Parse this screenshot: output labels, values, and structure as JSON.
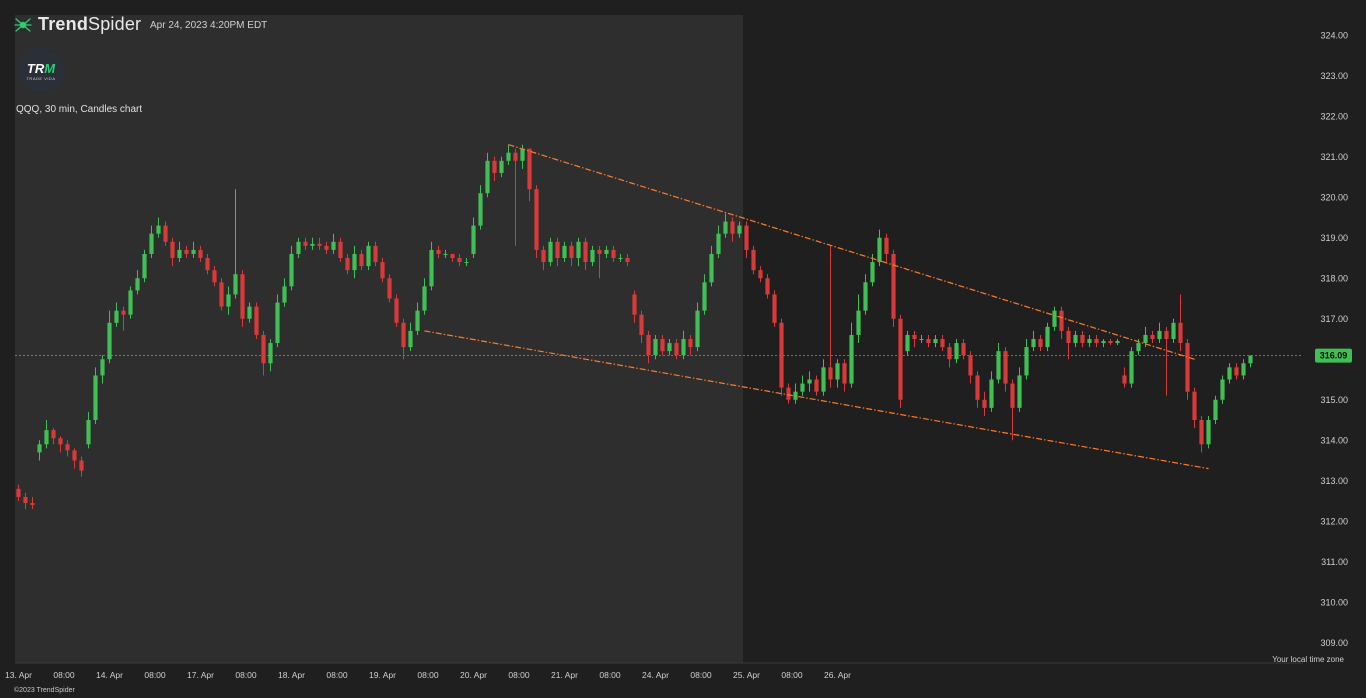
{
  "header": {
    "brand_name_bold": "Trend",
    "brand_name_rest": "Spider",
    "timestamp": "Apr 24, 2023 4:20PM EDT",
    "chart_label": "QQQ, 30 min, Candles chart",
    "logo_text": "TR",
    "logo_accent": "M",
    "logo_subtext": "TRADE VIDA"
  },
  "footer": {
    "timezone_label": "Your local time zone",
    "copyright": "©2023 TrendSpider"
  },
  "colors": {
    "background": "#1f1f1f",
    "session_band": "#2e2e2e",
    "up_candle": "#3fbf54",
    "down_candle": "#d83a3a",
    "trendline": "#ff7a2a",
    "price_badge": "#3fbf54"
  },
  "chart_data": {
    "type": "candlestick",
    "symbol": "QQQ",
    "interval": "30 min",
    "ylim": [
      308.5,
      324.5
    ],
    "y_ticks": [
      309.0,
      310.0,
      311.0,
      312.0,
      313.0,
      314.0,
      315.0,
      316.0,
      317.0,
      318.0,
      319.0,
      320.0,
      321.0,
      322.0,
      323.0,
      324.0
    ],
    "x_ticks": [
      "13. Apr",
      "08:00",
      "14. Apr",
      "08:00",
      "17. Apr",
      "08:00",
      "18. Apr",
      "08:00",
      "19. Apr",
      "08:00",
      "20. Apr",
      "08:00",
      "21. Apr",
      "08:00",
      "24. Apr",
      "08:00",
      "25. Apr",
      "08:00",
      "26. Apr"
    ],
    "sessions": [
      {
        "start": 0,
        "end": 13
      },
      {
        "start": 13,
        "end": 26
      },
      {
        "start": 26,
        "end": 39
      },
      {
        "start": 39,
        "end": 52
      },
      {
        "start": 52,
        "end": 65
      },
      {
        "start": 65,
        "end": 78
      },
      {
        "start": 78,
        "end": 91
      },
      {
        "start": 91,
        "end": 104
      }
    ],
    "last_price": 316.09,
    "trendlines": [
      {
        "name": "upper",
        "from": [
          70,
          321.3
        ],
        "to": [
          168,
          316.0
        ]
      },
      {
        "name": "lower",
        "from": [
          58,
          316.7
        ],
        "to": [
          170,
          313.3
        ]
      }
    ],
    "candles": [
      [
        312.8,
        312.6,
        312.9,
        312.5
      ],
      [
        312.6,
        312.45,
        312.7,
        312.3
      ],
      [
        312.45,
        312.4,
        312.6,
        312.3
      ],
      [
        313.7,
        313.9,
        314.0,
        313.5
      ],
      [
        313.9,
        314.25,
        314.5,
        313.8
      ],
      [
        314.25,
        314.05,
        314.3,
        313.9
      ],
      [
        314.05,
        313.9,
        314.1,
        313.7
      ],
      [
        313.9,
        313.75,
        314.0,
        313.6
      ],
      [
        313.75,
        313.5,
        313.8,
        313.3
      ],
      [
        313.5,
        313.25,
        313.6,
        313.1
      ],
      [
        313.9,
        314.5,
        314.7,
        313.8
      ],
      [
        314.5,
        315.6,
        315.8,
        314.4
      ],
      [
        315.6,
        316.0,
        316.1,
        315.4
      ],
      [
        316.0,
        316.9,
        317.2,
        315.9
      ],
      [
        316.9,
        317.2,
        317.4,
        316.8
      ],
      [
        317.2,
        317.1,
        317.3,
        316.7
      ],
      [
        317.1,
        317.7,
        317.8,
        317.0
      ],
      [
        317.7,
        318.0,
        318.2,
        317.6
      ],
      [
        318.0,
        318.6,
        318.7,
        317.9
      ],
      [
        318.6,
        319.1,
        319.3,
        318.5
      ],
      [
        319.1,
        319.3,
        319.5,
        319.0
      ],
      [
        319.3,
        318.9,
        319.4,
        318.8
      ],
      [
        318.9,
        318.5,
        319.0,
        318.3
      ],
      [
        318.5,
        318.7,
        318.9,
        318.4
      ],
      [
        318.7,
        318.6,
        318.8,
        318.5
      ],
      [
        318.6,
        318.7,
        318.9,
        318.5
      ],
      [
        318.7,
        318.5,
        318.8,
        318.4
      ],
      [
        318.5,
        318.2,
        318.6,
        318.1
      ],
      [
        318.2,
        317.9,
        318.3,
        317.8
      ],
      [
        317.9,
        317.3,
        318.0,
        317.2
      ],
      [
        317.3,
        317.6,
        317.8,
        317.1
      ],
      [
        317.6,
        318.1,
        320.2,
        317.5
      ],
      [
        318.1,
        317.0,
        318.2,
        316.8
      ],
      [
        317.0,
        317.3,
        317.4,
        316.9
      ],
      [
        317.3,
        316.6,
        317.4,
        316.5
      ],
      [
        316.6,
        315.9,
        316.7,
        315.6
      ],
      [
        315.9,
        316.4,
        316.5,
        315.7
      ],
      [
        316.4,
        317.4,
        317.6,
        316.3
      ],
      [
        317.4,
        317.8,
        318.0,
        317.3
      ],
      [
        317.8,
        318.6,
        318.8,
        317.7
      ],
      [
        318.6,
        318.9,
        319.0,
        318.5
      ],
      [
        318.9,
        318.8,
        319.0,
        318.7
      ],
      [
        318.8,
        318.85,
        319.0,
        318.7
      ],
      [
        318.85,
        318.8,
        319.0,
        318.7
      ],
      [
        318.8,
        318.7,
        318.9,
        318.6
      ],
      [
        318.7,
        318.9,
        319.1,
        318.6
      ],
      [
        318.9,
        318.5,
        319.0,
        318.4
      ],
      [
        318.5,
        318.2,
        318.6,
        318.1
      ],
      [
        318.2,
        318.6,
        318.8,
        318.0
      ],
      [
        318.6,
        318.3,
        318.7,
        318.2
      ],
      [
        318.3,
        318.8,
        318.9,
        318.2
      ],
      [
        318.8,
        318.4,
        318.9,
        318.3
      ],
      [
        318.4,
        318.0,
        318.5,
        317.9
      ],
      [
        318.0,
        317.5,
        318.1,
        317.4
      ],
      [
        317.5,
        316.9,
        317.6,
        316.8
      ],
      [
        316.9,
        316.3,
        317.0,
        316.0
      ],
      [
        316.3,
        316.7,
        316.9,
        316.2
      ],
      [
        316.7,
        317.2,
        317.4,
        316.6
      ],
      [
        317.2,
        317.8,
        318.0,
        317.1
      ],
      [
        317.8,
        318.7,
        318.9,
        317.7
      ],
      [
        318.7,
        318.6,
        318.8,
        318.5
      ],
      [
        318.6,
        318.6,
        318.7,
        318.5
      ],
      [
        318.6,
        318.5,
        318.6,
        318.4
      ],
      [
        318.5,
        318.4,
        318.6,
        318.3
      ],
      [
        318.4,
        318.4,
        318.5,
        318.3
      ],
      [
        318.6,
        319.3,
        319.5,
        318.5
      ],
      [
        319.3,
        320.1,
        320.3,
        319.2
      ],
      [
        320.1,
        320.9,
        321.1,
        320.0
      ],
      [
        320.9,
        320.6,
        321.0,
        320.4
      ],
      [
        320.6,
        320.9,
        321.0,
        320.5
      ],
      [
        320.9,
        321.1,
        321.3,
        320.8
      ],
      [
        321.1,
        320.9,
        321.2,
        318.8
      ],
      [
        320.9,
        321.2,
        321.3,
        320.7
      ],
      [
        321.2,
        320.2,
        321.2,
        319.9
      ],
      [
        320.2,
        318.7,
        320.3,
        318.5
      ],
      [
        318.7,
        318.4,
        318.8,
        318.2
      ],
      [
        318.4,
        318.9,
        319.0,
        318.3
      ],
      [
        318.9,
        318.5,
        319.0,
        318.3
      ],
      [
        318.5,
        318.8,
        318.9,
        318.4
      ],
      [
        318.8,
        318.5,
        318.9,
        318.3
      ],
      [
        318.5,
        318.9,
        319.0,
        318.3
      ],
      [
        318.9,
        318.4,
        319.0,
        318.2
      ],
      [
        318.4,
        318.7,
        318.8,
        318.3
      ],
      [
        318.7,
        318.6,
        318.8,
        318.0
      ],
      [
        318.6,
        318.7,
        318.8,
        318.5
      ],
      [
        318.7,
        318.5,
        318.8,
        318.4
      ],
      [
        318.5,
        318.5,
        318.6,
        318.4
      ],
      [
        318.5,
        318.4,
        318.6,
        318.3
      ],
      [
        317.6,
        317.1,
        317.7,
        316.9
      ],
      [
        317.1,
        316.6,
        317.2,
        316.4
      ],
      [
        316.6,
        316.1,
        316.7,
        315.9
      ],
      [
        316.1,
        316.5,
        316.6,
        316.0
      ],
      [
        316.5,
        316.2,
        316.6,
        316.1
      ],
      [
        316.2,
        316.4,
        316.5,
        316.1
      ],
      [
        316.4,
        316.1,
        316.5,
        316.0
      ],
      [
        316.1,
        316.5,
        316.7,
        316.0
      ],
      [
        316.5,
        316.3,
        316.6,
        316.1
      ],
      [
        316.3,
        317.2,
        317.4,
        316.2
      ],
      [
        317.2,
        317.9,
        318.1,
        317.1
      ],
      [
        317.9,
        318.6,
        318.8,
        317.8
      ],
      [
        318.6,
        319.1,
        319.3,
        318.5
      ],
      [
        319.1,
        319.4,
        319.6,
        319.0
      ],
      [
        319.4,
        319.1,
        319.5,
        318.9
      ],
      [
        319.1,
        319.3,
        319.4,
        319.0
      ],
      [
        319.3,
        318.7,
        319.4,
        318.5
      ],
      [
        318.7,
        318.2,
        318.8,
        318.1
      ],
      [
        318.2,
        318.0,
        318.3,
        317.9
      ],
      [
        318.0,
        317.6,
        318.1,
        317.5
      ],
      [
        317.6,
        316.9,
        317.7,
        316.8
      ],
      [
        316.9,
        315.3,
        317.0,
        315.1
      ],
      [
        315.3,
        315.0,
        315.4,
        314.9
      ],
      [
        315.0,
        315.2,
        315.4,
        314.9
      ],
      [
        315.2,
        315.4,
        315.6,
        315.1
      ],
      [
        315.4,
        315.5,
        315.7,
        315.2
      ],
      [
        315.5,
        315.2,
        315.6,
        315.1
      ],
      [
        315.2,
        315.8,
        316.0,
        315.1
      ],
      [
        315.8,
        315.5,
        318.8,
        315.3
      ],
      [
        315.5,
        315.9,
        316.0,
        315.3
      ],
      [
        315.9,
        315.4,
        316.0,
        315.2
      ],
      [
        315.4,
        316.6,
        316.9,
        315.3
      ],
      [
        316.6,
        317.2,
        317.6,
        316.4
      ],
      [
        317.2,
        317.9,
        318.1,
        317.1
      ],
      [
        317.9,
        318.4,
        318.6,
        317.8
      ],
      [
        318.4,
        319.0,
        319.2,
        318.3
      ],
      [
        319.0,
        318.6,
        319.1,
        318.4
      ],
      [
        318.6,
        317.0,
        318.7,
        316.8
      ],
      [
        317.0,
        315.0,
        317.1,
        314.8
      ],
      [
        316.2,
        316.6,
        316.7,
        316.1
      ],
      [
        316.6,
        316.5,
        316.7,
        316.3
      ],
      [
        316.5,
        316.5,
        316.6,
        316.4
      ],
      [
        316.5,
        316.4,
        316.6,
        316.3
      ],
      [
        316.4,
        316.5,
        316.6,
        316.3
      ],
      [
        316.5,
        316.3,
        316.6,
        316.2
      ],
      [
        316.3,
        316.0,
        316.4,
        315.8
      ],
      [
        316.0,
        316.4,
        316.5,
        315.9
      ],
      [
        316.4,
        316.1,
        316.5,
        316.0
      ],
      [
        316.1,
        315.6,
        316.2,
        315.4
      ],
      [
        315.6,
        315.0,
        315.7,
        314.8
      ],
      [
        315.0,
        314.8,
        315.2,
        314.6
      ],
      [
        314.8,
        315.5,
        315.7,
        314.7
      ],
      [
        315.5,
        316.2,
        316.4,
        315.4
      ],
      [
        316.2,
        315.4,
        316.3,
        315.2
      ],
      [
        315.4,
        314.8,
        315.5,
        314.0
      ],
      [
        314.8,
        315.6,
        315.8,
        314.7
      ],
      [
        315.6,
        316.3,
        316.5,
        315.5
      ],
      [
        316.3,
        316.5,
        316.7,
        316.2
      ],
      [
        316.5,
        316.3,
        316.6,
        316.2
      ],
      [
        316.3,
        316.8,
        316.9,
        316.2
      ],
      [
        316.8,
        317.2,
        317.3,
        316.7
      ],
      [
        317.2,
        316.7,
        317.3,
        316.5
      ],
      [
        316.7,
        316.4,
        316.8,
        316.0
      ],
      [
        316.4,
        316.6,
        316.7,
        316.3
      ],
      [
        316.6,
        316.4,
        316.7,
        316.3
      ],
      [
        316.4,
        316.5,
        316.6,
        316.3
      ],
      [
        316.5,
        316.4,
        316.6,
        316.3
      ],
      [
        316.4,
        316.45,
        316.5,
        316.3
      ],
      [
        316.45,
        316.4,
        316.5,
        316.35
      ],
      [
        316.4,
        316.45,
        316.5,
        316.35
      ],
      [
        315.6,
        315.4,
        315.8,
        315.3
      ],
      [
        315.4,
        316.2,
        316.3,
        315.3
      ],
      [
        316.2,
        316.4,
        316.5,
        316.1
      ],
      [
        316.4,
        316.6,
        316.8,
        316.3
      ],
      [
        316.6,
        316.5,
        316.7,
        316.4
      ],
      [
        316.5,
        316.7,
        316.9,
        316.4
      ],
      [
        316.7,
        316.5,
        316.8,
        315.1
      ],
      [
        316.5,
        316.9,
        317.0,
        316.4
      ],
      [
        316.9,
        316.4,
        317.6,
        316.2
      ],
      [
        316.4,
        315.2,
        316.5,
        315.0
      ],
      [
        315.2,
        314.5,
        315.3,
        314.3
      ],
      [
        314.5,
        313.9,
        314.6,
        313.7
      ],
      [
        313.9,
        314.5,
        314.6,
        313.8
      ],
      [
        314.5,
        315.0,
        315.1,
        314.4
      ],
      [
        315.0,
        315.5,
        315.6,
        314.9
      ],
      [
        315.5,
        315.8,
        315.9,
        315.4
      ],
      [
        315.8,
        315.6,
        315.9,
        315.5
      ],
      [
        315.6,
        315.9,
        316.0,
        315.5
      ],
      [
        315.9,
        316.09,
        316.1,
        315.8
      ]
    ]
  }
}
